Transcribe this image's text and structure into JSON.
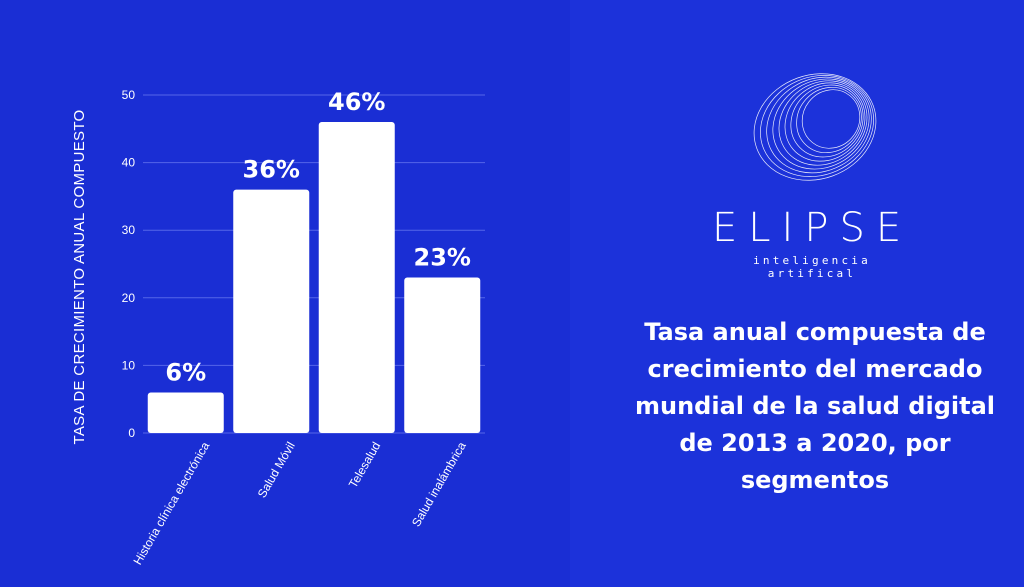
{
  "chart_data": {
    "type": "bar",
    "title": "",
    "ylabel": "TASA DE CRECIMIENTO ANUAL COMPUESTO",
    "xlabel": "",
    "ylim": [
      0,
      50
    ],
    "yticks": [
      0,
      10,
      20,
      30,
      40,
      50
    ],
    "grid": true,
    "categories": [
      "Historia clínica electrónica",
      "Salud Móvil",
      "Telesalud",
      "Salud inalámbrica"
    ],
    "values": [
      6,
      36,
      46,
      23
    ],
    "data_labels": [
      "6%",
      "36%",
      "46%",
      "23%"
    ],
    "bar_color": "#ffffff"
  },
  "brand": {
    "name": "ELIPSE",
    "tagline": "inteligencia artifical"
  },
  "description": "Tasa anual compuesta de crecimiento del mercado mundial de la salud digital de 2013 a 2020, por segmentos",
  "colors": {
    "background": "#1a2ed4",
    "text": "#ffffff"
  }
}
